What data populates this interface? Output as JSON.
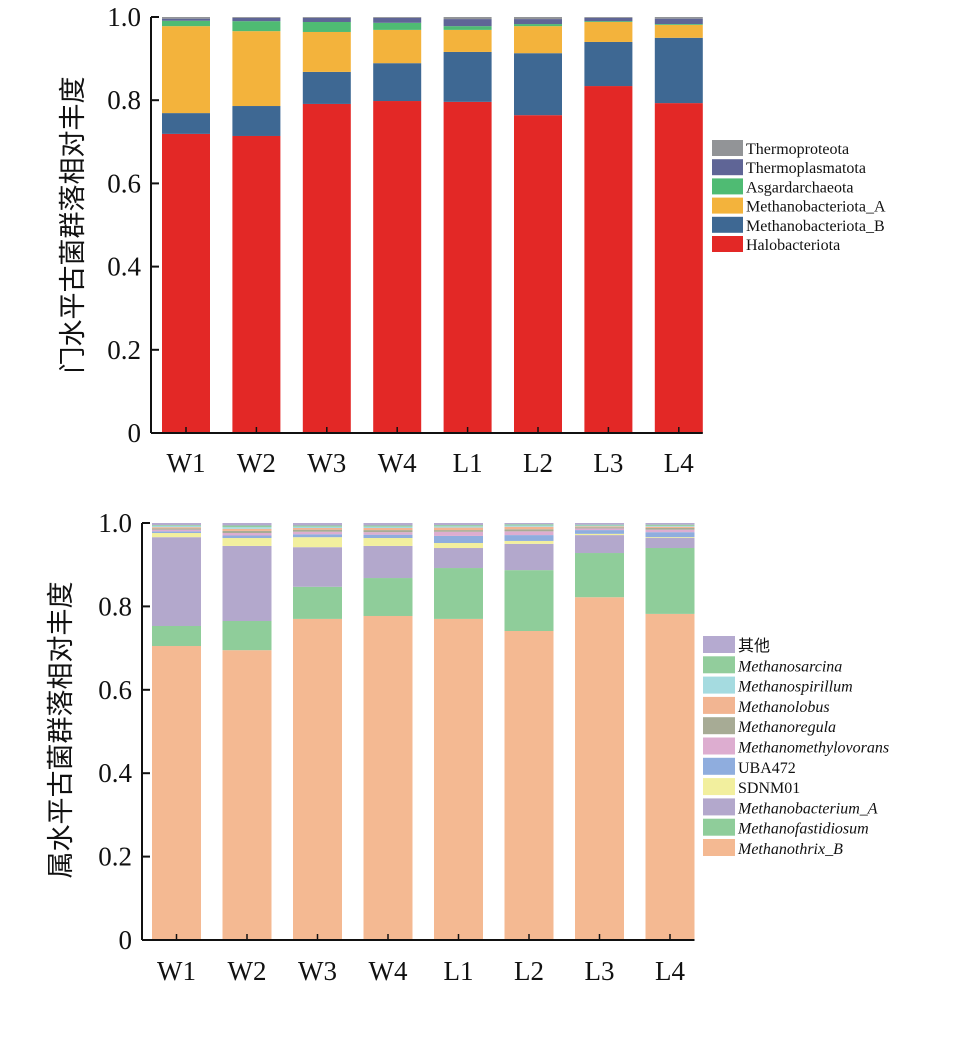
{
  "chart_data": [
    {
      "type": "bar",
      "stacked": true,
      "title": "",
      "xlabel": "",
      "ylabel": "门水平古菌群落相对丰度",
      "ylim": [
        0,
        1.0
      ],
      "yticks": [
        "0",
        "0.2",
        "0.4",
        "0.6",
        "0.8",
        "1.0"
      ],
      "grid": false,
      "legend_position": "right",
      "categories": [
        "W1",
        "W2",
        "W3",
        "W4",
        "L1",
        "L2",
        "L3",
        "L4"
      ],
      "series": [
        {
          "name": "Halobacteriota",
          "color": "#e32826",
          "italic": false,
          "values": [
            0.719,
            0.714,
            0.791,
            0.798,
            0.796,
            0.764,
            0.834,
            0.793
          ]
        },
        {
          "name": "Methanobacteriota_B",
          "color": "#3e6893",
          "italic": false,
          "values": [
            0.05,
            0.072,
            0.077,
            0.091,
            0.12,
            0.149,
            0.106,
            0.157
          ]
        },
        {
          "name": "Methanobacteriota_A",
          "color": "#f3b33c",
          "italic": false,
          "values": [
            0.209,
            0.18,
            0.096,
            0.08,
            0.053,
            0.065,
            0.048,
            0.031
          ]
        },
        {
          "name": "Asgardarchaeota",
          "color": "#4fbb73",
          "italic": false,
          "values": [
            0.013,
            0.024,
            0.024,
            0.017,
            0.009,
            0.005,
            0.002,
            0.002
          ]
        },
        {
          "name": "Thermoplasmatota",
          "color": "#5f6596",
          "italic": false,
          "values": [
            0.005,
            0.008,
            0.01,
            0.012,
            0.017,
            0.012,
            0.008,
            0.013
          ]
        },
        {
          "name": "Thermoproteota",
          "color": "#929497",
          "italic": false,
          "values": [
            0.004,
            0.002,
            0.002,
            0.002,
            0.005,
            0.005,
            0.002,
            0.004
          ]
        }
      ]
    },
    {
      "type": "bar",
      "stacked": true,
      "title": "",
      "xlabel": "",
      "ylabel": "属水平古菌群落相对丰度",
      "ylim": [
        0,
        1.0
      ],
      "yticks": [
        "0",
        "0.2",
        "0.4",
        "0.6",
        "0.8",
        "1.0"
      ],
      "grid": false,
      "legend_position": "right",
      "categories": [
        "W1",
        "W2",
        "W3",
        "W4",
        "L1",
        "L2",
        "L3",
        "L4"
      ],
      "series": [
        {
          "name": "Methanothrix_B",
          "color": "#f4b992",
          "italic": true,
          "values": [
            0.705,
            0.695,
            0.77,
            0.777,
            0.77,
            0.741,
            0.822,
            0.782
          ]
        },
        {
          "name": "Methanofastidiosum",
          "color": "#8fcd9a",
          "italic": true,
          "values": [
            0.048,
            0.07,
            0.077,
            0.091,
            0.122,
            0.146,
            0.106,
            0.158
          ]
        },
        {
          "name": "Methanobacterium_A",
          "color": "#b3a8cc",
          "italic": true,
          "values": [
            0.213,
            0.18,
            0.095,
            0.077,
            0.048,
            0.063,
            0.043,
            0.024
          ]
        },
        {
          "name": "SDNM01",
          "color": "#f2ef9e",
          "italic": false,
          "values": [
            0.01,
            0.019,
            0.024,
            0.019,
            0.012,
            0.007,
            0.003,
            0.002
          ]
        },
        {
          "name": "UBA472",
          "color": "#8fadde",
          "italic": false,
          "values": [
            0.004,
            0.006,
            0.007,
            0.008,
            0.017,
            0.014,
            0.009,
            0.012
          ]
        },
        {
          "name": "Methanomethylovorans",
          "color": "#ddadd0",
          "italic": true,
          "values": [
            0.004,
            0.006,
            0.006,
            0.006,
            0.01,
            0.009,
            0.004,
            0.006
          ]
        },
        {
          "name": "Methanoregula",
          "color": "#a7ab95",
          "italic": true,
          "values": [
            0.003,
            0.005,
            0.005,
            0.005,
            0.004,
            0.005,
            0.003,
            0.004
          ]
        },
        {
          "name": "Methanolobus",
          "color": "#f2b592",
          "italic": true,
          "values": [
            0.003,
            0.005,
            0.004,
            0.005,
            0.006,
            0.006,
            0.002,
            0.003
          ]
        },
        {
          "name": "Methanospirillum",
          "color": "#a5dbe0",
          "italic": true,
          "values": [
            0.003,
            0.004,
            0.003,
            0.003,
            0.003,
            0.003,
            0.002,
            0.002
          ]
        },
        {
          "name": "Methanosarcina",
          "color": "#92cd9c",
          "italic": true,
          "values": [
            0.002,
            0.004,
            0.003,
            0.003,
            0.003,
            0.003,
            0.002,
            0.003
          ]
        },
        {
          "name": "其他",
          "color": "#b5aad0",
          "italic": false,
          "values": [
            0.005,
            0.006,
            0.006,
            0.006,
            0.005,
            0.003,
            0.004,
            0.004
          ]
        }
      ]
    }
  ]
}
